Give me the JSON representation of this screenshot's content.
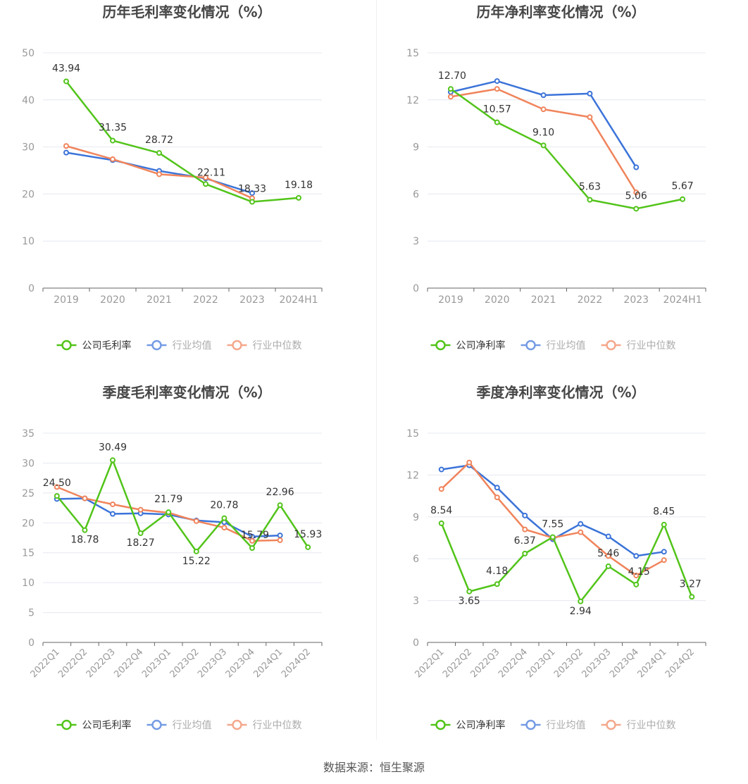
{
  "colors": {
    "company": "#52c41a",
    "industry_avg": "#3b73d9",
    "industry_median": "#f0845c",
    "grid": "#e6e8f0",
    "axis": "#666666",
    "tick_text": "#999999",
    "title_text": "#464646",
    "label_text": "#333333"
  },
  "legend_marker_icon": "circle-line-marker",
  "footer": {
    "source": "数据来源：恒生聚源"
  },
  "chart_data": [
    {
      "id": "annual_gross",
      "type": "line",
      "title": "历年毛利率变化情况（%）",
      "categories": [
        "2019",
        "2020",
        "2021",
        "2022",
        "2023",
        "2024H1"
      ],
      "ylim": [
        0,
        50
      ],
      "yticks": [
        0,
        10,
        20,
        30,
        40,
        50
      ],
      "grid": true,
      "legend_position": "bottom",
      "series": [
        {
          "key": "company",
          "name": "公司毛利率",
          "values": [
            43.94,
            31.35,
            28.72,
            22.11,
            18.33,
            19.18
          ],
          "labels": [
            "43.94",
            "31.35",
            "28.72",
            "22.11",
            "18.33",
            "19.18"
          ]
        },
        {
          "key": "industry_avg",
          "name": "行业均值",
          "values": [
            28.8,
            27.2,
            24.9,
            23.3,
            20.2,
            null
          ]
        },
        {
          "key": "industry_median",
          "name": "行业中位数",
          "values": [
            30.2,
            27.4,
            24.2,
            23.5,
            19.1,
            null
          ]
        }
      ]
    },
    {
      "id": "annual_net",
      "type": "line",
      "title": "历年净利率变化情况（%）",
      "categories": [
        "2019",
        "2020",
        "2021",
        "2022",
        "2023",
        "2024H1"
      ],
      "ylim": [
        0,
        15
      ],
      "yticks": [
        0,
        3,
        6,
        9,
        12,
        15
      ],
      "grid": true,
      "legend_position": "bottom",
      "series": [
        {
          "key": "company",
          "name": "公司净利率",
          "values": [
            12.7,
            10.57,
            9.1,
            5.63,
            5.06,
            5.67
          ],
          "labels": [
            "12.70",
            "10.57",
            "9.10",
            "5.63",
            "5.06",
            "5.67"
          ]
        },
        {
          "key": "industry_avg",
          "name": "行业均值",
          "values": [
            12.5,
            13.2,
            12.3,
            12.4,
            7.7,
            null
          ]
        },
        {
          "key": "industry_median",
          "name": "行业中位数",
          "values": [
            12.2,
            12.7,
            11.4,
            10.9,
            6.1,
            null
          ]
        }
      ]
    },
    {
      "id": "quarterly_gross",
      "type": "line",
      "title": "季度毛利率变化情况（%）",
      "categories": [
        "2022Q1",
        "2022Q2",
        "2022Q3",
        "2022Q4",
        "2023Q1",
        "2023Q2",
        "2023Q3",
        "2023Q4",
        "2024Q1",
        "2024Q2"
      ],
      "ylim": [
        0,
        35
      ],
      "yticks": [
        0,
        5,
        10,
        15,
        20,
        25,
        30,
        35
      ],
      "grid": true,
      "legend_position": "bottom",
      "series": [
        {
          "key": "company",
          "name": "公司毛利率",
          "values": [
            24.5,
            18.78,
            30.49,
            18.27,
            21.79,
            15.22,
            20.78,
            15.79,
            22.96,
            15.93
          ],
          "labels": [
            "24.50",
            "18.78",
            "30.49",
            "18.27",
            "21.79",
            "15.22",
            "20.78",
            "15.79",
            "22.96",
            "15.93"
          ]
        },
        {
          "key": "industry_avg",
          "name": "行业均值",
          "values": [
            24.0,
            24.1,
            21.5,
            21.6,
            21.4,
            20.4,
            20.1,
            17.7,
            17.9,
            null
          ]
        },
        {
          "key": "industry_median",
          "name": "行业中位数",
          "values": [
            26.0,
            24.1,
            23.1,
            22.2,
            21.7,
            20.3,
            19.2,
            17.0,
            17.1,
            null
          ]
        }
      ]
    },
    {
      "id": "quarterly_net",
      "type": "line",
      "title": "季度净利率变化情况（%）",
      "categories": [
        "2022Q1",
        "2022Q2",
        "2022Q3",
        "2022Q4",
        "2023Q1",
        "2023Q2",
        "2023Q3",
        "2023Q4",
        "2024Q1",
        "2024Q2"
      ],
      "ylim": [
        0,
        15
      ],
      "yticks": [
        0,
        3,
        6,
        9,
        12,
        15
      ],
      "grid": true,
      "legend_position": "bottom",
      "series": [
        {
          "key": "company",
          "name": "公司净利率",
          "values": [
            8.54,
            3.65,
            4.18,
            6.37,
            7.55,
            2.94,
            5.46,
            4.15,
            8.45,
            3.27
          ],
          "labels": [
            "8.54",
            "3.65",
            "4.18",
            "6.37",
            "7.55",
            "2.94",
            "5.46",
            "4.15",
            "8.45",
            "3.27"
          ]
        },
        {
          "key": "industry_avg",
          "name": "行业均值",
          "values": [
            12.4,
            12.7,
            11.1,
            9.1,
            7.4,
            8.5,
            7.6,
            6.2,
            6.5,
            null
          ]
        },
        {
          "key": "industry_median",
          "name": "行业中位数",
          "values": [
            11.0,
            12.9,
            10.4,
            8.1,
            7.5,
            7.9,
            6.2,
            4.8,
            5.9,
            null
          ]
        }
      ]
    }
  ]
}
